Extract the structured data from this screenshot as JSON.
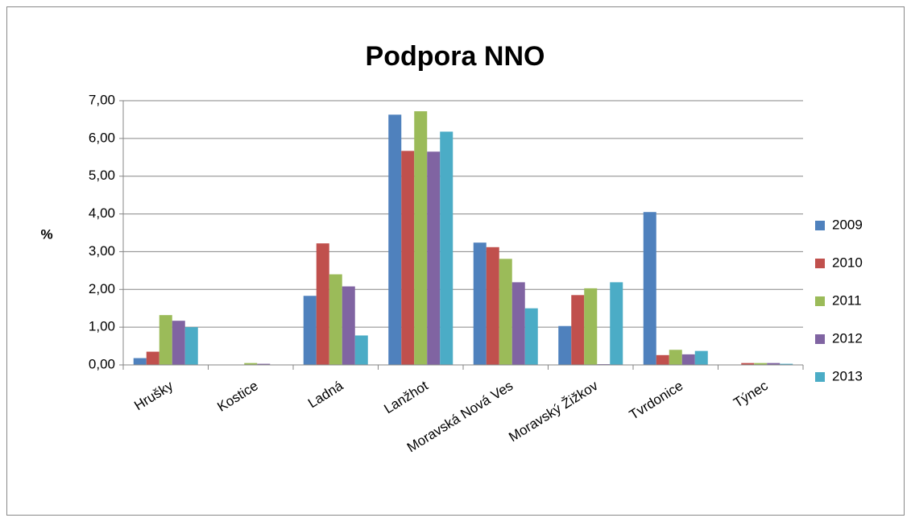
{
  "chart_data": {
    "type": "bar",
    "title": "Podpora NNO",
    "y_label": "%",
    "categories": [
      "Hrušky",
      "Kostice",
      "Ladná",
      "Lanžhot",
      "Moravská Nová Ves",
      "Moravský Žižkov",
      "Tvrdonice",
      "Týnec"
    ],
    "series": [
      {
        "name": "2009",
        "color": "#4f81bd",
        "values": [
          0.18,
          0,
          1.83,
          6.63,
          3.24,
          1.03,
          4.05,
          0
        ]
      },
      {
        "name": "2010",
        "color": "#c0504d",
        "values": [
          0.35,
          0,
          3.22,
          5.67,
          3.12,
          1.85,
          0.26,
          0.05
        ]
      },
      {
        "name": "2011",
        "color": "#9bbb59",
        "values": [
          1.32,
          0.05,
          2.4,
          6.72,
          2.81,
          2.03,
          0.4,
          0.05
        ]
      },
      {
        "name": "2012",
        "color": "#8064a2",
        "values": [
          1.17,
          0.03,
          2.08,
          5.65,
          2.19,
          0.02,
          0.28,
          0.05
        ]
      },
      {
        "name": "2013",
        "color": "#4bacc6",
        "values": [
          1.0,
          0,
          0.78,
          6.18,
          1.5,
          2.19,
          0.37,
          0.03
        ]
      }
    ],
    "ylim": [
      0,
      7
    ],
    "yticks": [
      {
        "value": 0,
        "label": "0,00"
      },
      {
        "value": 1,
        "label": "1,00"
      },
      {
        "value": 2,
        "label": "2,00"
      },
      {
        "value": 3,
        "label": "3,00"
      },
      {
        "value": 4,
        "label": "4,00"
      },
      {
        "value": 5,
        "label": "5,00"
      },
      {
        "value": 6,
        "label": "6,00"
      },
      {
        "value": 7,
        "label": "7,00"
      }
    ],
    "grid": true,
    "legend": "right"
  }
}
